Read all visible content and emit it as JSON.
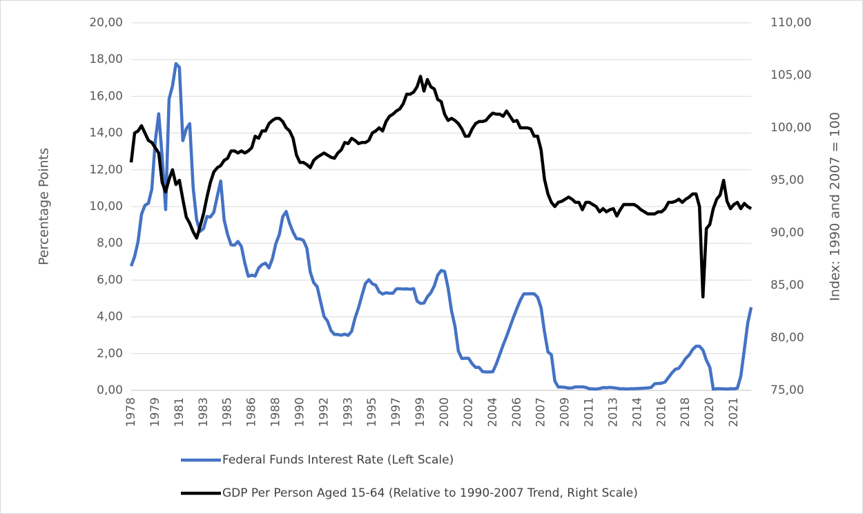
{
  "chart_data": {
    "type": "line",
    "y_label": "Percentage Points",
    "y2_label": "Index: 1990 and 2007 = 100",
    "categories": [
      "1978",
      null,
      null,
      null,
      null,
      null,
      null,
      "1979",
      null,
      null,
      null,
      null,
      null,
      null,
      "1981",
      null,
      null,
      null,
      null,
      null,
      null,
      "1983",
      null,
      null,
      null,
      null,
      null,
      null,
      "1985",
      null,
      null,
      null,
      null,
      null,
      null,
      "1986",
      null,
      null,
      null,
      null,
      null,
      null,
      "1988",
      null,
      null,
      null,
      null,
      null,
      null,
      "1990",
      null,
      null,
      null,
      null,
      null,
      null,
      "1992",
      null,
      null,
      null,
      null,
      null,
      null,
      "1993",
      null,
      null,
      null,
      null,
      null,
      null,
      "1995",
      null,
      null,
      null,
      null,
      null,
      null,
      "1997",
      null,
      null,
      null,
      null,
      null,
      null,
      "1999",
      null,
      null,
      null,
      null,
      null,
      null,
      "2000",
      null,
      null,
      null,
      null,
      null,
      null,
      "2002",
      null,
      null,
      null,
      null,
      null,
      null,
      "2004",
      null,
      null,
      null,
      null,
      null,
      null,
      "2006",
      null,
      null,
      null,
      null,
      null,
      null,
      "2007",
      null,
      null,
      null,
      null,
      null,
      null,
      "2009",
      null,
      null,
      null,
      null,
      null,
      null,
      "2011",
      null,
      null,
      null,
      null,
      null,
      null,
      "2013",
      null,
      null,
      null,
      null,
      null,
      null,
      "2014",
      null,
      null,
      null,
      null,
      null,
      null,
      "2016",
      null,
      null,
      null,
      null,
      null,
      null,
      "2018",
      null,
      null,
      null,
      null,
      null,
      null,
      "2020",
      null,
      null,
      null,
      null,
      null,
      null,
      "2021",
      null,
      null,
      null,
      null,
      null
    ],
    "series": [
      {
        "name": "Federal Funds Interest Rate (Left Scale)",
        "color": "#4472c4",
        "values": [
          6.76,
          7.28,
          8.1,
          9.58,
          10.07,
          10.18,
          10.95,
          13.58,
          15.05,
          12.69,
          9.84,
          15.85,
          16.57,
          17.78,
          17.58,
          13.59,
          14.23,
          14.51,
          11.01,
          9.29,
          8.65,
          8.8,
          9.46,
          9.43,
          9.69,
          10.56,
          11.39,
          9.27,
          8.48,
          7.92,
          7.9,
          8.1,
          7.83,
          6.92,
          6.21,
          6.27,
          6.22,
          6.65,
          6.84,
          6.92,
          6.66,
          7.16,
          7.98,
          8.47,
          9.44,
          9.73,
          9.08,
          8.61,
          8.25,
          8.24,
          8.16,
          7.74,
          6.43,
          5.86,
          5.64,
          4.82,
          4.02,
          3.77,
          3.26,
          3.04,
          3.04,
          3.0,
          3.06,
          2.99,
          3.21,
          3.94,
          4.49,
          5.17,
          5.81,
          6.02,
          5.8,
          5.72,
          5.36,
          5.24,
          5.31,
          5.28,
          5.28,
          5.52,
          5.53,
          5.51,
          5.52,
          5.5,
          5.53,
          4.86,
          4.73,
          4.75,
          5.09,
          5.31,
          5.68,
          6.27,
          6.52,
          6.47,
          5.59,
          4.33,
          3.5,
          2.13,
          1.73,
          1.75,
          1.74,
          1.44,
          1.25,
          1.25,
          1.02,
          1.0,
          1.0,
          1.01,
          1.43,
          1.95,
          2.47,
          2.94,
          3.46,
          3.98,
          4.46,
          4.91,
          5.25,
          5.25,
          5.26,
          5.25,
          5.07,
          4.5,
          3.18,
          2.09,
          1.94,
          0.51,
          0.18,
          0.18,
          0.16,
          0.12,
          0.13,
          0.19,
          0.19,
          0.19,
          0.16,
          0.09,
          0.08,
          0.07,
          0.1,
          0.15,
          0.14,
          0.16,
          0.14,
          0.12,
          0.08,
          0.09,
          0.07,
          0.09,
          0.09,
          0.1,
          0.11,
          0.12,
          0.13,
          0.16,
          0.36,
          0.37,
          0.39,
          0.45,
          0.7,
          0.95,
          1.15,
          1.2,
          1.45,
          1.74,
          1.92,
          2.22,
          2.4,
          2.4,
          2.19,
          1.64,
          1.26,
          0.06,
          0.09,
          0.09,
          0.08,
          0.07,
          0.09,
          0.08,
          0.12,
          0.77,
          2.19,
          3.65,
          4.52
        ]
      },
      {
        "name": "GDP Per Person Aged 15-64 (Relative to 1990-2007 Trend, Right Scale)",
        "color": "#000000",
        "axis": "y2",
        "values": [
          96.7,
          99.5,
          99.7,
          100.2,
          99.5,
          98.8,
          98.6,
          98.1,
          97.6,
          94.8,
          93.9,
          95.1,
          96.0,
          94.6,
          95.0,
          93.2,
          91.5,
          90.9,
          90.1,
          89.5,
          90.6,
          91.8,
          93.4,
          94.8,
          95.8,
          96.2,
          96.4,
          96.9,
          97.1,
          97.8,
          97.8,
          97.6,
          97.8,
          97.6,
          97.8,
          98.1,
          99.2,
          99.0,
          99.7,
          99.7,
          100.4,
          100.7,
          100.9,
          100.9,
          100.6,
          100.0,
          99.7,
          99.0,
          97.4,
          96.7,
          96.7,
          96.5,
          96.2,
          96.9,
          97.2,
          97.4,
          97.6,
          97.4,
          97.2,
          97.1,
          97.6,
          97.9,
          98.6,
          98.5,
          99.0,
          98.8,
          98.5,
          98.6,
          98.6,
          98.8,
          99.5,
          99.7,
          100.0,
          99.7,
          100.6,
          101.1,
          101.3,
          101.6,
          101.8,
          102.3,
          103.2,
          103.2,
          103.4,
          103.9,
          104.9,
          103.5,
          104.6,
          103.9,
          103.7,
          102.7,
          102.5,
          101.3,
          100.7,
          100.9,
          100.7,
          100.4,
          99.9,
          99.2,
          99.2,
          99.9,
          100.4,
          100.6,
          100.6,
          100.7,
          101.1,
          101.4,
          101.3,
          101.3,
          101.1,
          101.6,
          101.1,
          100.6,
          100.7,
          100.0,
          100.0,
          100.0,
          99.9,
          99.2,
          99.2,
          97.9,
          95.1,
          93.7,
          92.9,
          92.5,
          92.9,
          93.0,
          93.2,
          93.4,
          93.2,
          92.9,
          92.9,
          92.2,
          92.9,
          92.9,
          92.7,
          92.5,
          92.0,
          92.3,
          92.0,
          92.2,
          92.3,
          91.6,
          92.2,
          92.7,
          92.7,
          92.7,
          92.7,
          92.5,
          92.2,
          92.0,
          91.8,
          91.8,
          91.8,
          92.0,
          92.0,
          92.3,
          92.9,
          92.9,
          93.0,
          93.2,
          92.9,
          93.2,
          93.4,
          93.7,
          93.7,
          92.5,
          83.9,
          90.4,
          90.8,
          92.3,
          93.2,
          93.6,
          95.0,
          93.0,
          92.3,
          92.7,
          92.9,
          92.3,
          92.8,
          92.5,
          92.3
        ]
      }
    ],
    "ylim": [
      0,
      20
    ],
    "yticks": [
      {
        "value": 0,
        "label": "0,00"
      },
      {
        "value": 2,
        "label": "2,00"
      },
      {
        "value": 4,
        "label": "4,00"
      },
      {
        "value": 6,
        "label": "6,00"
      },
      {
        "value": 8,
        "label": "8,00"
      },
      {
        "value": 10,
        "label": "10,00"
      },
      {
        "value": 12,
        "label": "12,00"
      },
      {
        "value": 14,
        "label": "14,00"
      },
      {
        "value": 16,
        "label": "16,00"
      },
      {
        "value": 18,
        "label": "18,00"
      },
      {
        "value": 20,
        "label": "20,00"
      }
    ],
    "y2lim": [
      75,
      110
    ],
    "y2ticks": [
      {
        "value": 75,
        "label": "75,00"
      },
      {
        "value": 80,
        "label": "80,00"
      },
      {
        "value": 85,
        "label": "85,00"
      },
      {
        "value": 90,
        "label": "90,00"
      },
      {
        "value": 95,
        "label": "95,00"
      },
      {
        "value": 100,
        "label": "100,00"
      },
      {
        "value": 105,
        "label": "105,00"
      },
      {
        "value": 110,
        "label": "110,00"
      }
    ],
    "grid": true,
    "legend": "bottom"
  }
}
